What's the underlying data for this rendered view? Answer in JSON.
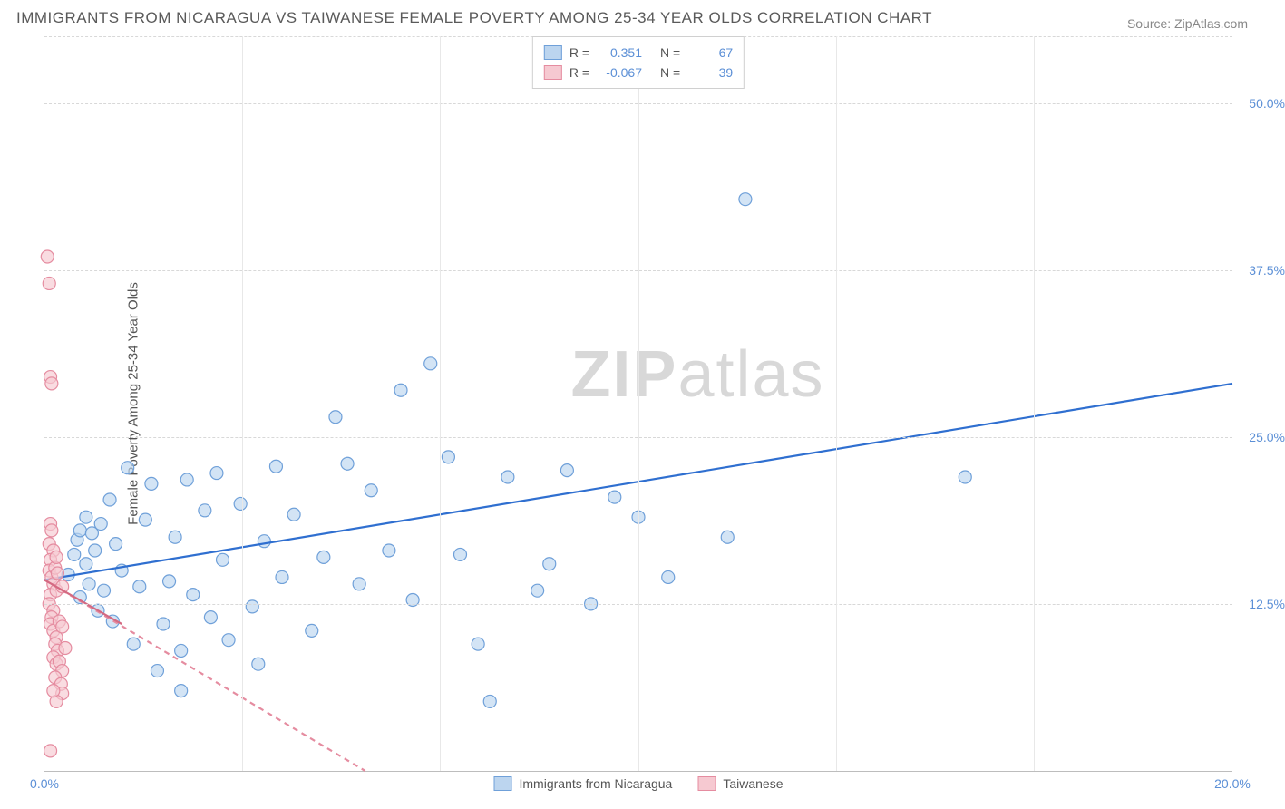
{
  "title": "IMMIGRANTS FROM NICARAGUA VS TAIWANESE FEMALE POVERTY AMONG 25-34 YEAR OLDS CORRELATION CHART",
  "source": "Source: ZipAtlas.com",
  "watermark": {
    "bold": "ZIP",
    "rest": "atlas"
  },
  "y_axis_label": "Female Poverty Among 25-34 Year Olds",
  "chart": {
    "type": "scatter",
    "background_color": "#ffffff",
    "grid_color": "#d8d8d8",
    "axis_color": "#bdbdbd",
    "tick_color": "#5b8fd6",
    "xlim": [
      0,
      20
    ],
    "ylim": [
      0,
      55
    ],
    "xticks": [
      0,
      20
    ],
    "xtick_labels": [
      "0.0%",
      "20.0%"
    ],
    "yticks": [
      12.5,
      25.0,
      37.5,
      50.0
    ],
    "ytick_labels": [
      "12.5%",
      "25.0%",
      "37.5%",
      "50.0%"
    ],
    "vgrid_at": [
      3.33,
      6.66,
      10.0,
      13.33,
      16.66
    ],
    "marker_radius": 7,
    "marker_stroke_width": 1.2,
    "line_width": 2.2
  },
  "series": [
    {
      "name": "Immigrants from Nicaragua",
      "fill": "#bcd5ef",
      "stroke": "#6fa0d9",
      "fill_opacity": 0.65,
      "R": "0.351",
      "N": "67",
      "trend": {
        "x1": 0,
        "y1": 14.3,
        "x2": 20,
        "y2": 29.0,
        "color": "#2f6fd0",
        "dash": null
      },
      "points": [
        [
          0.4,
          14.7
        ],
        [
          0.5,
          16.2
        ],
        [
          0.55,
          17.3
        ],
        [
          0.6,
          18.0
        ],
        [
          0.6,
          13.0
        ],
        [
          0.7,
          15.5
        ],
        [
          0.7,
          19.0
        ],
        [
          0.75,
          14.0
        ],
        [
          0.8,
          17.8
        ],
        [
          0.85,
          16.5
        ],
        [
          0.9,
          12.0
        ],
        [
          0.95,
          18.5
        ],
        [
          1.0,
          13.5
        ],
        [
          1.1,
          20.3
        ],
        [
          1.15,
          11.2
        ],
        [
          1.2,
          17.0
        ],
        [
          1.3,
          15.0
        ],
        [
          1.4,
          22.7
        ],
        [
          1.5,
          9.5
        ],
        [
          1.6,
          13.8
        ],
        [
          1.7,
          18.8
        ],
        [
          1.8,
          21.5
        ],
        [
          1.9,
          7.5
        ],
        [
          2.0,
          11.0
        ],
        [
          2.1,
          14.2
        ],
        [
          2.2,
          17.5
        ],
        [
          2.3,
          9.0
        ],
        [
          2.4,
          21.8
        ],
        [
          2.5,
          13.2
        ],
        [
          2.7,
          19.5
        ],
        [
          2.8,
          11.5
        ],
        [
          2.9,
          22.3
        ],
        [
          3.0,
          15.8
        ],
        [
          3.1,
          9.8
        ],
        [
          3.3,
          20.0
        ],
        [
          3.5,
          12.3
        ],
        [
          3.7,
          17.2
        ],
        [
          3.9,
          22.8
        ],
        [
          4.0,
          14.5
        ],
        [
          4.2,
          19.2
        ],
        [
          4.5,
          10.5
        ],
        [
          4.7,
          16.0
        ],
        [
          4.9,
          26.5
        ],
        [
          5.1,
          23.0
        ],
        [
          5.3,
          14.0
        ],
        [
          5.5,
          21.0
        ],
        [
          5.8,
          16.5
        ],
        [
          6.0,
          28.5
        ],
        [
          6.2,
          12.8
        ],
        [
          6.5,
          30.5
        ],
        [
          6.8,
          23.5
        ],
        [
          7.0,
          16.2
        ],
        [
          7.3,
          9.5
        ],
        [
          7.5,
          5.2
        ],
        [
          7.8,
          22.0
        ],
        [
          8.3,
          13.5
        ],
        [
          8.5,
          15.5
        ],
        [
          8.8,
          22.5
        ],
        [
          9.2,
          12.5
        ],
        [
          9.6,
          20.5
        ],
        [
          10.0,
          19.0
        ],
        [
          10.5,
          14.5
        ],
        [
          11.8,
          42.8
        ],
        [
          11.5,
          17.5
        ],
        [
          15.5,
          22.0
        ],
        [
          2.3,
          6.0
        ],
        [
          3.6,
          8.0
        ]
      ]
    },
    {
      "name": "Taiwanese",
      "fill": "#f6c9d1",
      "stroke": "#e58ca0",
      "fill_opacity": 0.65,
      "R": "-0.067",
      "N": "39",
      "trend": {
        "x1": 0,
        "y1": 14.3,
        "x2": 5.4,
        "y2": 0,
        "color": "#e58ca0",
        "dash": "6,5"
      },
      "trend_solid": {
        "x1": 0,
        "y1": 14.3,
        "x2": 1.3,
        "y2": 11.0,
        "color": "#d46a82"
      },
      "points": [
        [
          0.05,
          38.5
        ],
        [
          0.08,
          36.5
        ],
        [
          0.1,
          29.5
        ],
        [
          0.12,
          29.0
        ],
        [
          0.1,
          18.5
        ],
        [
          0.08,
          17.0
        ],
        [
          0.12,
          18.0
        ],
        [
          0.15,
          16.5
        ],
        [
          0.1,
          15.8
        ],
        [
          0.08,
          15.0
        ],
        [
          0.12,
          14.5
        ],
        [
          0.15,
          14.0
        ],
        [
          0.18,
          15.2
        ],
        [
          0.2,
          16.0
        ],
        [
          0.1,
          13.2
        ],
        [
          0.08,
          12.5
        ],
        [
          0.15,
          12.0
        ],
        [
          0.2,
          13.5
        ],
        [
          0.22,
          14.8
        ],
        [
          0.12,
          11.5
        ],
        [
          0.1,
          11.0
        ],
        [
          0.15,
          10.5
        ],
        [
          0.2,
          10.0
        ],
        [
          0.25,
          11.2
        ],
        [
          0.18,
          9.5
        ],
        [
          0.22,
          9.0
        ],
        [
          0.3,
          10.8
        ],
        [
          0.15,
          8.5
        ],
        [
          0.2,
          8.0
        ],
        [
          0.25,
          8.2
        ],
        [
          0.3,
          7.5
        ],
        [
          0.35,
          9.2
        ],
        [
          0.18,
          7.0
        ],
        [
          0.28,
          6.5
        ],
        [
          0.3,
          5.8
        ],
        [
          0.2,
          5.2
        ],
        [
          0.15,
          6.0
        ],
        [
          0.1,
          1.5
        ],
        [
          0.3,
          13.8
        ]
      ]
    }
  ],
  "legend_top": {
    "R_label": "R =",
    "N_label": "N ="
  },
  "legend_bottom": [
    {
      "label": "Immigrants from Nicaragua",
      "fill": "#bcd5ef",
      "stroke": "#6fa0d9"
    },
    {
      "label": "Taiwanese",
      "fill": "#f6c9d1",
      "stroke": "#e58ca0"
    }
  ]
}
